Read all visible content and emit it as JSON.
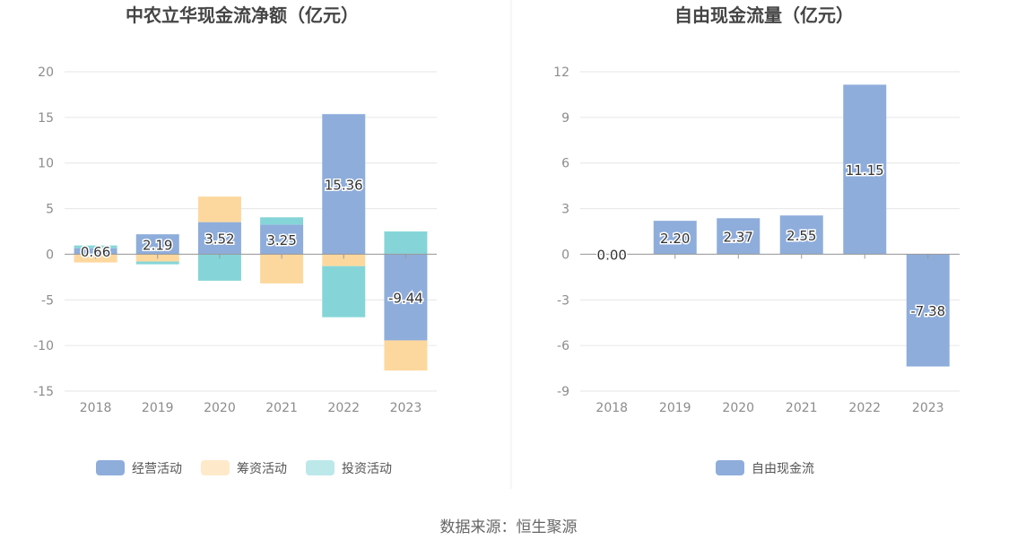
{
  "source_text": "数据来源：恒生聚源",
  "colors": {
    "operating": "#8eaddb",
    "financing": "#fdd89e",
    "investing": "#85d5d8",
    "free_cf": "#8eaddb",
    "grid": "#e6e6e6",
    "axis": "#999999"
  },
  "chart_data": [
    {
      "type": "bar",
      "stacked": true,
      "title": "中农立华现金流净额（亿元）",
      "categories": [
        "2018",
        "2019",
        "2020",
        "2021",
        "2022",
        "2023"
      ],
      "ylim": [
        -15,
        20
      ],
      "yticks": [
        20,
        15,
        10,
        5,
        0,
        -5,
        -10,
        -15
      ],
      "grid": true,
      "legend_position": "bottom",
      "series": [
        {
          "name": "经营活动",
          "values": [
            0.66,
            2.19,
            3.52,
            3.25,
            15.36,
            -9.44
          ]
        },
        {
          "name": "筹资活动",
          "values": [
            -0.9,
            -0.8,
            2.8,
            -3.2,
            -1.3,
            -3.3
          ]
        },
        {
          "name": "投资活动",
          "values": [
            0.3,
            -0.3,
            -2.9,
            0.8,
            -5.6,
            2.5
          ]
        }
      ],
      "data_labels": [
        "0.66",
        "2.19",
        "3.52",
        "3.25",
        "15.36",
        "-9.44"
      ]
    },
    {
      "type": "bar",
      "title": "自由现金流量（亿元）",
      "categories": [
        "2018",
        "2019",
        "2020",
        "2021",
        "2022",
        "2023"
      ],
      "ylim": [
        -9,
        12
      ],
      "yticks": [
        12,
        9,
        6,
        3,
        0,
        -3,
        -6,
        -9
      ],
      "grid": true,
      "legend_position": "bottom",
      "series": [
        {
          "name": "自由现金流",
          "values": [
            0.0,
            2.2,
            2.37,
            2.55,
            11.15,
            -7.38
          ]
        }
      ],
      "data_labels": [
        "0.00",
        "2.20",
        "2.37",
        "2.55",
        "11.15",
        "-7.38"
      ]
    }
  ]
}
